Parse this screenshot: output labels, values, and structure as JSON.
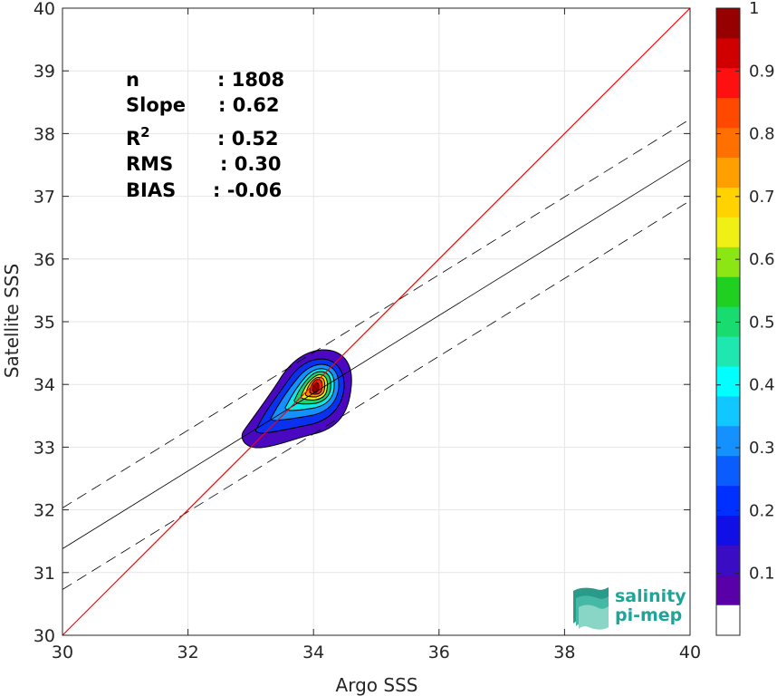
{
  "chart_data": {
    "type": "scatter",
    "xlabel": "Argo SSS",
    "ylabel": "Satellite SSS",
    "xlim": [
      30,
      40
    ],
    "ylim": [
      30,
      40
    ],
    "x_ticks": [
      "30",
      "32",
      "34",
      "36",
      "38",
      "40"
    ],
    "y_ticks": [
      "30",
      "31",
      "32",
      "33",
      "34",
      "35",
      "36",
      "37",
      "38",
      "39",
      "40"
    ],
    "grid": true,
    "stats": [
      {
        "label": "n",
        "value": ": 1808"
      },
      {
        "label": "Slope",
        "value": ": 0.62"
      },
      {
        "label": "R",
        "sup": "2",
        "value": ": 0.52"
      },
      {
        "label": "RMS",
        "value": ": 0.30"
      },
      {
        "label": "BIAS",
        "value": ": -0.06"
      }
    ],
    "identity_line": {
      "color": "#ff0000",
      "x": [
        30,
        40
      ],
      "y": [
        30,
        40
      ]
    },
    "regression_line": {
      "x": [
        30,
        40
      ],
      "y": [
        31.38,
        37.58
      ]
    },
    "regression_bounds": [
      {
        "x": [
          30,
          40
        ],
        "y": [
          32.03,
          38.23
        ]
      },
      {
        "x": [
          30,
          40
        ],
        "y": [
          30.73,
          36.93
        ]
      }
    ],
    "density_peak": {
      "x": 34.05,
      "y": 33.93
    },
    "colorbar": {
      "range": [
        0,
        1
      ],
      "ticks": [
        "0.1",
        "0.2",
        "0.3",
        "0.4",
        "0.5",
        "0.6",
        "0.7",
        "0.8",
        "0.9",
        "1"
      ],
      "colors": [
        "#ffffff",
        "#5a00a8",
        "#3a0cc4",
        "#1010e6",
        "#0030ff",
        "#0a5cff",
        "#1490ff",
        "#10c8ff",
        "#00ffff",
        "#1ee8b0",
        "#18dc70",
        "#20d020",
        "#8ce614",
        "#f0f014",
        "#ffd200",
        "#ffa000",
        "#ff7000",
        "#ff4800",
        "#ff1010",
        "#d00000",
        "#960000"
      ]
    }
  },
  "logo": {
    "line1": "salinity",
    "line2": "pi-mep"
  }
}
